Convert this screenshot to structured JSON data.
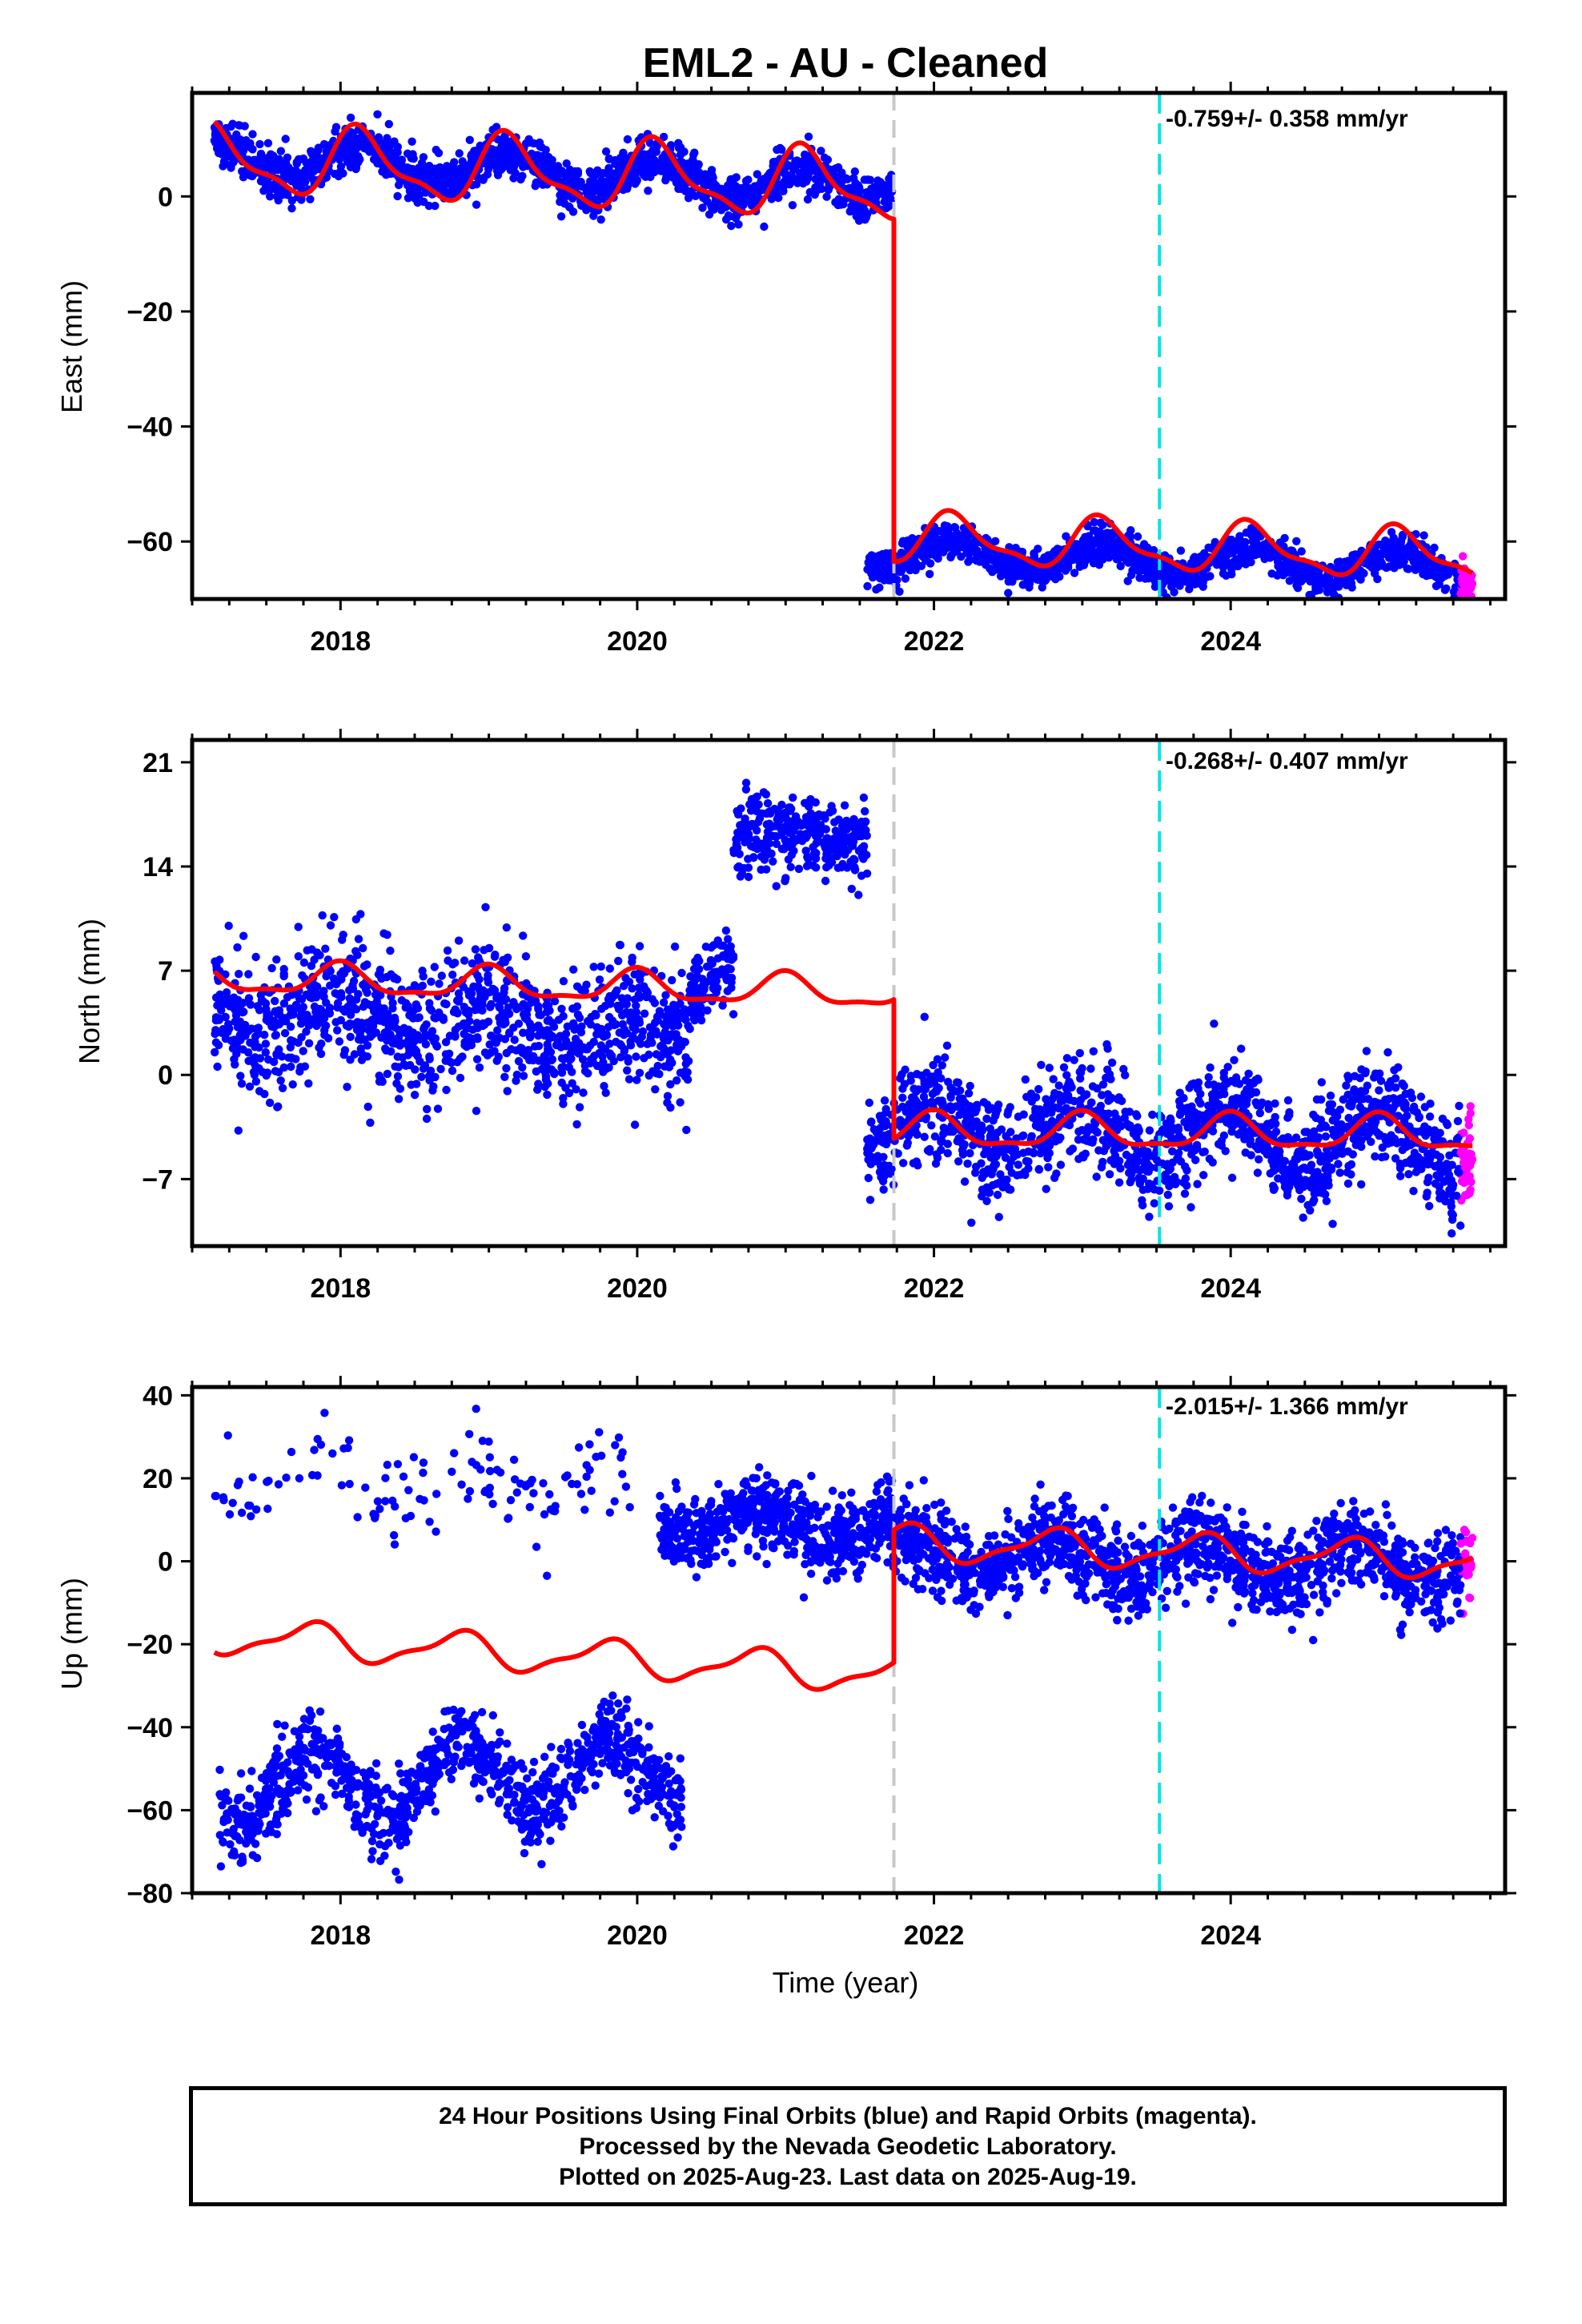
{
  "title": "EML2  - AU - Cleaned",
  "xlabel": "Time (year)",
  "footer": {
    "line1": "24 Hour Positions Using Final Orbits (blue) and Rapid Orbits (magenta).",
    "line2": "Processed by the Nevada Geodetic Laboratory.",
    "line3": "Plotted on 2025-Aug-23. Last data on 2025-Aug-19."
  },
  "colors": {
    "final_orbits": "#0000ff",
    "rapid_orbits": "#ff00ff",
    "model": "#ff0000",
    "offset_line": "#c8c8c8",
    "event_line": "#00e5e5",
    "frame": "#000000"
  },
  "chart_data": [
    {
      "type": "scatter",
      "component": "East",
      "ylabel": "East (mm)",
      "rate_label": "-0.759+/- 0.358 mm/yr",
      "xlim": [
        2017.0,
        2025.85
      ],
      "ylim": [
        -70,
        18
      ],
      "xticks": [
        2018,
        2020,
        2022,
        2024
      ],
      "yticks": [
        0,
        -20,
        -40,
        -60
      ],
      "grid": false,
      "offset_epoch": 2021.73,
      "event_epoch": 2023.52,
      "data_start": 2017.15,
      "data_end": 2025.63,
      "rapid_start": 2025.55,
      "model": {
        "segments": [
          {
            "t0": 2017.15,
            "t1": 2021.73,
            "y0": 6.5,
            "y1": 1.5,
            "amp": 5.5,
            "phase": 0.7
          },
          {
            "t0": 2021.73,
            "t1": 2025.63,
            "y0": -59.5,
            "y1": -62.5,
            "amp": 4.0,
            "phase": 0.7
          }
        ]
      },
      "obs_segments": [
        {
          "t0": 2017.15,
          "t1": 2021.55,
          "y0": 7.0,
          "y1": 1.5,
          "amp": 3.0,
          "noise": 2.0,
          "n": 1500
        },
        {
          "t0": 2021.55,
          "t1": 2021.72,
          "y0": 1.0,
          "y1": 1.0,
          "amp": 0,
          "noise": 1.5,
          "n": 50
        },
        {
          "t0": 2021.55,
          "t1": 2025.63,
          "y0": -62.0,
          "y1": -64.5,
          "amp": 2.5,
          "noise": 1.6,
          "n": 1500
        }
      ]
    },
    {
      "type": "scatter",
      "component": "North",
      "ylabel": "North (mm)",
      "rate_label": "-0.268+/- 0.407 mm/yr",
      "xlim": [
        2017.0,
        2025.85
      ],
      "ylim": [
        -11.5,
        22.5
      ],
      "xticks": [
        2018,
        2020,
        2022,
        2024
      ],
      "yticks": [
        21,
        14,
        7,
        0,
        -7
      ],
      "grid": false,
      "offset_epoch": 2021.73,
      "event_epoch": 2023.52,
      "data_start": 2017.15,
      "data_end": 2025.63,
      "rapid_start": 2025.55,
      "model": {
        "segments": [
          {
            "t0": 2017.15,
            "t1": 2021.73,
            "y0": 6.5,
            "y1": 5.5,
            "amp": 1.0,
            "phase": 1.6
          },
          {
            "t0": 2021.73,
            "t1": 2025.63,
            "y0": -3.8,
            "y1": -4.0,
            "amp": 1.1,
            "phase": 1.6
          }
        ]
      },
      "obs_segments": [
        {
          "t0": 2017.15,
          "t1": 2020.35,
          "y0": 4.5,
          "y1": 2.5,
          "amp": 1.2,
          "noise": 2.3,
          "n": 1150
        },
        {
          "t0": 2020.35,
          "t1": 2020.65,
          "y0": 5.5,
          "y1": 8.0,
          "amp": 0.3,
          "noise": 1.4,
          "n": 110
        },
        {
          "t0": 2020.65,
          "t1": 2021.55,
          "y0": 16.0,
          "y1": 16.0,
          "amp": 0.5,
          "noise": 1.3,
          "n": 320
        },
        {
          "t0": 2021.55,
          "t1": 2025.63,
          "y0": -3.5,
          "y1": -4.5,
          "amp": 1.8,
          "noise": 1.7,
          "n": 1500
        }
      ]
    },
    {
      "type": "scatter",
      "component": "Up",
      "ylabel": "Up (mm)",
      "rate_label": "-2.015+/- 1.366 mm/yr",
      "xlim": [
        2017.0,
        2025.85
      ],
      "ylim": [
        -80,
        42
      ],
      "xticks": [
        2018,
        2020,
        2022,
        2024
      ],
      "yticks": [
        40,
        20,
        0,
        -20,
        -40,
        -60,
        -80
      ],
      "grid": false,
      "offset_epoch": 2021.73,
      "event_epoch": 2023.52,
      "data_start": 2017.15,
      "data_end": 2025.63,
      "rapid_start": 2025.55,
      "model": {
        "segments": [
          {
            "t0": 2017.15,
            "t1": 2021.73,
            "y0": -18.0,
            "y1": -27.5,
            "amp": 4.0,
            "phase": 2.9
          },
          {
            "t0": 2021.73,
            "t1": 2025.63,
            "y0": 4.5,
            "y1": 0.0,
            "amp": 4.0,
            "phase": 2.9
          }
        ]
      },
      "obs_segments": [
        {
          "t0": 2017.18,
          "t1": 2020.3,
          "y0": -55.0,
          "y1": -50.0,
          "amp": 8.0,
          "noise": 5.0,
          "n": 1000
        },
        {
          "t0": 2017.15,
          "t1": 2020.0,
          "y0": 22.0,
          "y1": 18.0,
          "amp": 6.0,
          "noise": 6.0,
          "n": 130
        },
        {
          "t0": 2020.15,
          "t1": 2021.72,
          "y0": 10.0,
          "y1": 8.0,
          "amp": 4.0,
          "noise": 4.5,
          "n": 600
        },
        {
          "t0": 2021.72,
          "t1": 2025.63,
          "y0": 2.0,
          "y1": -1.0,
          "amp": 4.5,
          "noise": 5.0,
          "n": 1450
        }
      ]
    }
  ]
}
